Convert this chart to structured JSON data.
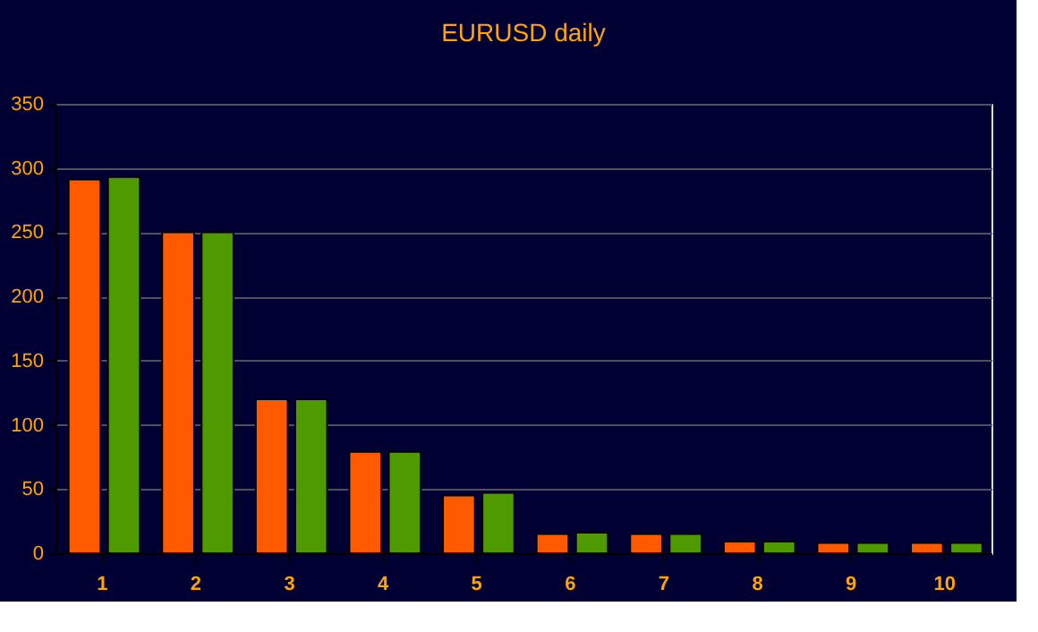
{
  "chart_data": {
    "type": "bar",
    "title": "EURUSD daily",
    "categories": [
      "1",
      "2",
      "3",
      "4",
      "5",
      "6",
      "7",
      "8",
      "9",
      "10"
    ],
    "series": [
      {
        "color": "#ff5a00",
        "values": [
          291,
          250,
          120,
          79,
          45,
          15,
          15,
          9,
          8,
          8
        ]
      },
      {
        "color": "#4f9a00",
        "values": [
          293,
          250,
          120,
          79,
          47,
          16,
          15,
          9,
          8,
          8
        ]
      }
    ],
    "ylim": [
      0,
      350
    ],
    "yticks": [
      0,
      50,
      100,
      150,
      200,
      250,
      300,
      350
    ],
    "grid": "y",
    "legend": false
  }
}
